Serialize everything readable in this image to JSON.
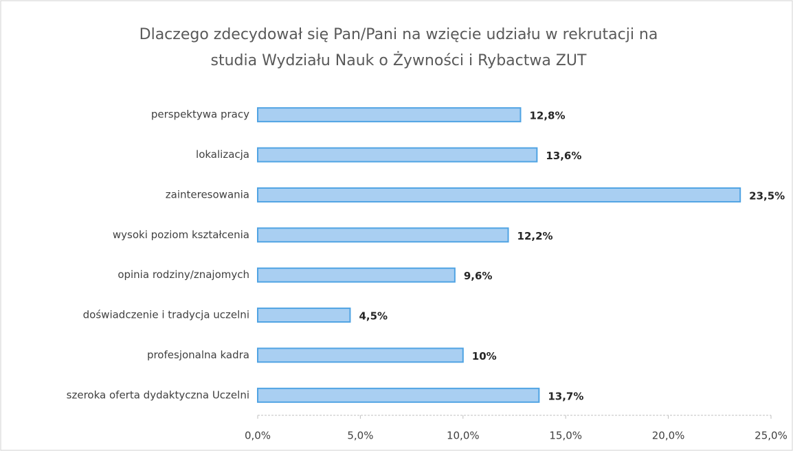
{
  "chart_data": {
    "type": "barh",
    "title": [
      "Dlaczego zdecydował się Pan/Pani na wzięcie udziału w rekrutacji na",
      "studia Wydziału Nauk o Żywności i Rybactwa ZUT"
    ],
    "categories": [
      "perspektywa pracy",
      "lokalizacja",
      "zainteresowania",
      "wysoki poziom kształcenia",
      "opinia rodziny/znajomych",
      "doświadczenie i tradycja uczelni",
      "profesjonalna kadra",
      "szeroka oferta dydaktyczna Uczelni"
    ],
    "values": [
      12.8,
      13.6,
      23.5,
      12.2,
      9.6,
      4.5,
      10,
      13.7
    ],
    "value_labels": [
      "12,8%",
      "13,6%",
      "23,5%",
      "12,2%",
      "9,6%",
      "4,5%",
      "10%",
      "13,7%"
    ],
    "color": "#a9cff2",
    "edge_color": "#4fa3e3",
    "xlim": [
      0,
      25
    ],
    "xticks": [
      {
        "value": 0,
        "label": "0,0%"
      },
      {
        "value": 5,
        "label": "5,0%"
      },
      {
        "value": 10,
        "label": "10,0%"
      },
      {
        "value": 15,
        "label": "15,0%"
      },
      {
        "value": 20,
        "label": "20,0%"
      },
      {
        "value": 25,
        "label": "25,0%"
      }
    ],
    "grid": false
  }
}
